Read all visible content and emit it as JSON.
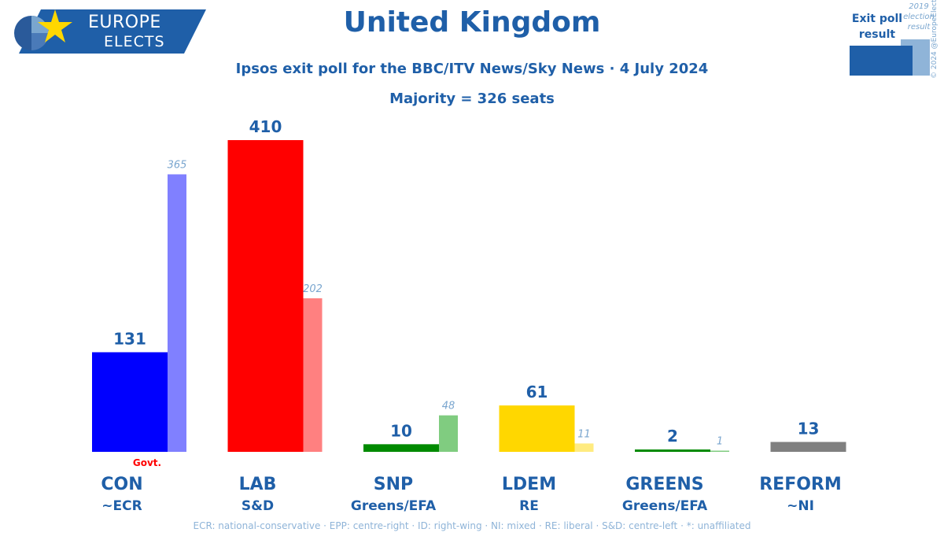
{
  "brand": {
    "line1": "EUROPE",
    "line2": "ELECTS"
  },
  "legend": {
    "current": "Exit poll result",
    "previous": "2019 election result",
    "copyright": "© 2024 @EuropeElects"
  },
  "chart_data": {
    "type": "bar",
    "title": "United Kingdom",
    "subtitle": "Ipsos exit poll for the BBC/ITV News/Sky News · 4 July 2024",
    "annotation": "Majority = 326 seats",
    "categories": [
      "CON",
      "LAB",
      "SNP",
      "LDEM",
      "GREENS",
      "REFORM"
    ],
    "groups": [
      "~ECR",
      "S&D",
      "Greens/EFA",
      "RE",
      "Greens/EFA",
      "~NI"
    ],
    "series": [
      {
        "name": "Exit poll result",
        "values": [
          131,
          410,
          10,
          61,
          2,
          13
        ]
      },
      {
        "name": "2019 election result",
        "values": [
          365,
          202,
          48,
          11,
          1,
          null
        ]
      }
    ],
    "colors": [
      "#0000ff",
      "#ff0000",
      "#008a00",
      "#ffd700",
      "#008a00",
      "#808080"
    ],
    "prev_colors": [
      "#8080ff",
      "#ff8080",
      "#80cc80",
      "#ffeb80",
      "#80cc80",
      "#c0c0c0"
    ],
    "govt_label": "Govt.",
    "govt_index": 0,
    "ylim": [
      0,
      410
    ]
  },
  "footer": "ECR: national-conservative · EPP: centre-right · ID: right-wing · NI: mixed · RE: liberal · S&D: centre-left · *: unaffiliated"
}
